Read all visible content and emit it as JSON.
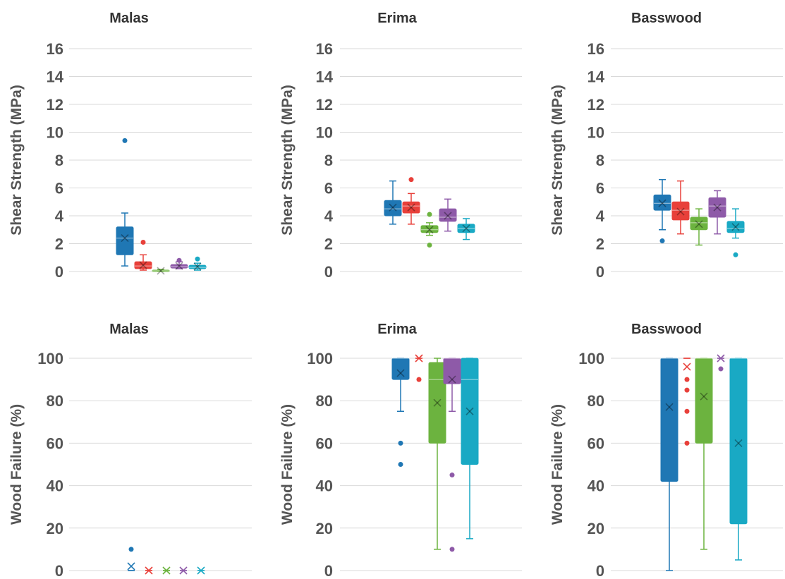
{
  "chart_data": [
    {
      "type": "box",
      "title": "Malas",
      "ylabel": "Shear Strength (MPa)",
      "ylim": [
        0,
        16
      ],
      "yticks": [
        "0",
        "2",
        "4",
        "6",
        "8",
        "10",
        "12",
        "14",
        "16"
      ],
      "grid": true,
      "groups": [
        {
          "color": "#1f77b4",
          "min": 0.4,
          "q1": 1.2,
          "median": 2.4,
          "q3": 3.2,
          "max": 4.2,
          "mean": 2.4,
          "outliers": [
            9.4
          ]
        },
        {
          "color": "#e8403a",
          "min": 0.1,
          "q1": 0.2,
          "median": 0.4,
          "q3": 0.7,
          "max": 1.2,
          "mean": 0.45,
          "outliers": [
            2.1
          ]
        },
        {
          "color": "#6cb33f",
          "min": 0.0,
          "q1": 0.0,
          "median": 0.05,
          "q3": 0.1,
          "max": 0.15,
          "mean": 0.05,
          "outliers": []
        },
        {
          "color": "#8e5aa8",
          "min": 0.2,
          "q1": 0.25,
          "median": 0.35,
          "q3": 0.5,
          "max": 0.7,
          "mean": 0.4,
          "outliers": [
            0.8
          ]
        },
        {
          "color": "#19a9c4",
          "min": 0.1,
          "q1": 0.2,
          "median": 0.3,
          "q3": 0.45,
          "max": 0.6,
          "mean": 0.35,
          "outliers": [
            0.9
          ]
        }
      ]
    },
    {
      "type": "box",
      "title": "Erima",
      "ylabel": "Shear Strength (MPa)",
      "ylim": [
        0,
        16
      ],
      "yticks": [
        "0",
        "2",
        "4",
        "6",
        "8",
        "10",
        "12",
        "14",
        "16"
      ],
      "grid": true,
      "groups": [
        {
          "color": "#1f77b4",
          "min": 3.4,
          "q1": 4.0,
          "median": 4.5,
          "q3": 5.1,
          "max": 6.5,
          "mean": 4.6,
          "outliers": []
        },
        {
          "color": "#e8403a",
          "min": 3.4,
          "q1": 4.2,
          "median": 4.7,
          "q3": 5.0,
          "max": 5.6,
          "mean": 4.6,
          "outliers": [
            6.6
          ]
        },
        {
          "color": "#6cb33f",
          "min": 2.6,
          "q1": 2.8,
          "median": 3.0,
          "q3": 3.3,
          "max": 3.5,
          "mean": 3.0,
          "outliers": [
            4.1,
            1.9
          ]
        },
        {
          "color": "#8e5aa8",
          "min": 2.9,
          "q1": 3.6,
          "median": 3.9,
          "q3": 4.5,
          "max": 5.2,
          "mean": 4.0,
          "outliers": []
        },
        {
          "color": "#19a9c4",
          "min": 2.3,
          "q1": 2.8,
          "median": 3.1,
          "q3": 3.4,
          "max": 3.8,
          "mean": 3.1,
          "outliers": []
        }
      ]
    },
    {
      "type": "box",
      "title": "Basswood",
      "ylabel": "Shear Strength (MPa)",
      "ylim": [
        0,
        16
      ],
      "yticks": [
        "0",
        "2",
        "4",
        "6",
        "8",
        "10",
        "12",
        "14",
        "16"
      ],
      "grid": true,
      "groups": [
        {
          "color": "#1f77b4",
          "min": 3.0,
          "q1": 4.4,
          "median": 4.9,
          "q3": 5.5,
          "max": 6.6,
          "mean": 4.9,
          "outliers": [
            2.2
          ]
        },
        {
          "color": "#e8403a",
          "min": 2.7,
          "q1": 3.7,
          "median": 4.4,
          "q3": 5.0,
          "max": 6.5,
          "mean": 4.3,
          "outliers": []
        },
        {
          "color": "#6cb33f",
          "min": 1.9,
          "q1": 3.0,
          "median": 3.5,
          "q3": 3.9,
          "max": 4.5,
          "mean": 3.4,
          "outliers": []
        },
        {
          "color": "#8e5aa8",
          "min": 2.7,
          "q1": 3.9,
          "median": 4.7,
          "q3": 5.3,
          "max": 5.8,
          "mean": 4.6,
          "outliers": []
        },
        {
          "color": "#19a9c4",
          "min": 2.4,
          "q1": 2.8,
          "median": 3.1,
          "q3": 3.6,
          "max": 4.5,
          "mean": 3.2,
          "outliers": [
            1.2
          ]
        }
      ]
    },
    {
      "type": "box",
      "title": "Malas",
      "ylabel": "Wood Failure (%)",
      "ylim": [
        0,
        100
      ],
      "yticks": [
        "0",
        "20",
        "40",
        "60",
        "80",
        "100"
      ],
      "grid": true,
      "groups": [
        {
          "color": "#1f77b4",
          "min": 0,
          "q1": 0,
          "median": 0,
          "q3": 0,
          "max": 0,
          "mean": 2,
          "outliers": [
            10
          ]
        },
        {
          "color": "#e8403a",
          "min": 0,
          "q1": 0,
          "median": 0,
          "q3": 0,
          "max": 0,
          "mean": 0,
          "outliers": []
        },
        {
          "color": "#6cb33f",
          "min": 0,
          "q1": 0,
          "median": 0,
          "q3": 0,
          "max": 0,
          "mean": 0,
          "outliers": []
        },
        {
          "color": "#8e5aa8",
          "min": 0,
          "q1": 0,
          "median": 0,
          "q3": 0,
          "max": 0,
          "mean": 0,
          "outliers": []
        },
        {
          "color": "#19a9c4",
          "min": 0,
          "q1": 0,
          "median": 0,
          "q3": 0,
          "max": 0,
          "mean": 0,
          "outliers": []
        }
      ]
    },
    {
      "type": "box",
      "title": "Erima",
      "ylabel": "Wood Failure (%)",
      "ylim": [
        0,
        100
      ],
      "yticks": [
        "0",
        "20",
        "40",
        "60",
        "80",
        "100"
      ],
      "grid": true,
      "groups": [
        {
          "color": "#1f77b4",
          "min": 75,
          "q1": 90,
          "median": 100,
          "q3": 100,
          "max": 100,
          "mean": 93,
          "outliers": [
            60,
            50
          ]
        },
        {
          "color": "#e8403a",
          "min": 100,
          "q1": 100,
          "median": 100,
          "q3": 100,
          "max": 100,
          "mean": 100,
          "outliers": [
            90
          ]
        },
        {
          "color": "#6cb33f",
          "min": 10,
          "q1": 60,
          "median": 90,
          "q3": 98,
          "max": 100,
          "mean": 79,
          "outliers": []
        },
        {
          "color": "#8e5aa8",
          "min": 75,
          "q1": 88,
          "median": 100,
          "q3": 100,
          "max": 100,
          "mean": 90,
          "outliers": [
            45,
            10
          ]
        },
        {
          "color": "#19a9c4",
          "min": 15,
          "q1": 50,
          "median": 90,
          "q3": 100,
          "max": 100,
          "mean": 75,
          "outliers": []
        }
      ]
    },
    {
      "type": "box",
      "title": "Basswood",
      "ylabel": "Wood Failure (%)",
      "ylim": [
        0,
        100
      ],
      "yticks": [
        "0",
        "20",
        "40",
        "60",
        "80",
        "100"
      ],
      "grid": true,
      "groups": [
        {
          "color": "#1f77b4",
          "min": 0,
          "q1": 42,
          "median": 100,
          "q3": 100,
          "max": 100,
          "mean": 77,
          "outliers": []
        },
        {
          "color": "#e8403a",
          "min": 100,
          "q1": 100,
          "median": 100,
          "q3": 100,
          "max": 100,
          "mean": 96,
          "outliers": [
            90,
            85,
            75,
            60
          ]
        },
        {
          "color": "#6cb33f",
          "min": 10,
          "q1": 60,
          "median": 100,
          "q3": 100,
          "max": 100,
          "mean": 82,
          "outliers": []
        },
        {
          "color": "#8e5aa8",
          "min": 100,
          "q1": 100,
          "median": 100,
          "q3": 100,
          "max": 100,
          "mean": 100,
          "outliers": [
            95
          ]
        },
        {
          "color": "#19a9c4",
          "min": 5,
          "q1": 22,
          "median": 100,
          "q3": 100,
          "max": 100,
          "mean": 60,
          "outliers": []
        }
      ]
    }
  ]
}
